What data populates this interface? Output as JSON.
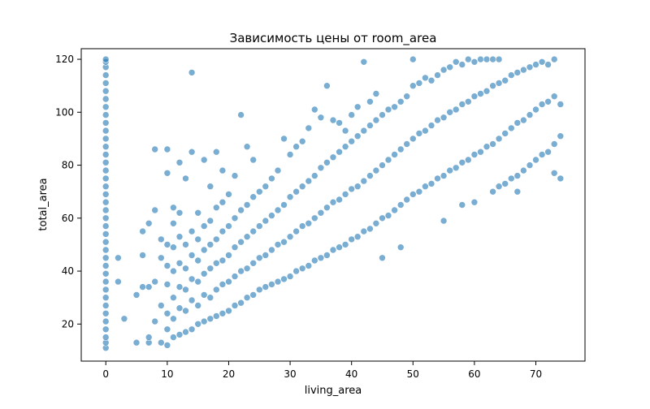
{
  "chart_data": {
    "type": "scatter",
    "title": "Зависимость цены от room_area",
    "xlabel": "living_area",
    "ylabel": "total_area",
    "xlim": [
      -4,
      78
    ],
    "ylim": [
      6,
      124
    ],
    "x_ticks": [
      0,
      10,
      20,
      30,
      40,
      50,
      60,
      70
    ],
    "y_ticks": [
      20,
      40,
      60,
      80,
      100,
      120
    ],
    "grid": false,
    "legend": "none",
    "point_color": "#1f77b4",
    "point_opacity": 0.6,
    "series": [
      {
        "points": [
          [
            0,
            11
          ],
          [
            0,
            13
          ],
          [
            0,
            15
          ],
          [
            0,
            18
          ],
          [
            0,
            21
          ],
          [
            0,
            24
          ],
          [
            0,
            27
          ],
          [
            0,
            30
          ],
          [
            0,
            33
          ],
          [
            0,
            36
          ],
          [
            0,
            39
          ],
          [
            0,
            42
          ],
          [
            0,
            45
          ],
          [
            0,
            48
          ],
          [
            0,
            51
          ],
          [
            0,
            54
          ],
          [
            0,
            57
          ],
          [
            0,
            60
          ],
          [
            0,
            63
          ],
          [
            0,
            66
          ],
          [
            0,
            69
          ],
          [
            0,
            72
          ],
          [
            0,
            75
          ],
          [
            0,
            78
          ],
          [
            0,
            81
          ],
          [
            0,
            84
          ],
          [
            0,
            87
          ],
          [
            0,
            90
          ],
          [
            0,
            93
          ],
          [
            0,
            96
          ],
          [
            0,
            99
          ],
          [
            0,
            102
          ],
          [
            0,
            105
          ],
          [
            0,
            108
          ],
          [
            0,
            111
          ],
          [
            0,
            114
          ],
          [
            0,
            117
          ],
          [
            0,
            119
          ],
          [
            0,
            120
          ],
          [
            2,
            45
          ],
          [
            2,
            36
          ],
          [
            3,
            22
          ],
          [
            5,
            13
          ],
          [
            5,
            31
          ],
          [
            6,
            34
          ],
          [
            6,
            46
          ],
          [
            6,
            55
          ],
          [
            7,
            13
          ],
          [
            7,
            15
          ],
          [
            7,
            34
          ],
          [
            7,
            58
          ],
          [
            8,
            21
          ],
          [
            8,
            36
          ],
          [
            8,
            63
          ],
          [
            8,
            86
          ],
          [
            9,
            13
          ],
          [
            9,
            27
          ],
          [
            9,
            45
          ],
          [
            9,
            52
          ],
          [
            10,
            12
          ],
          [
            10,
            18
          ],
          [
            10,
            24
          ],
          [
            10,
            35
          ],
          [
            10,
            42
          ],
          [
            10,
            50
          ],
          [
            10,
            77
          ],
          [
            10,
            86
          ],
          [
            11,
            15
          ],
          [
            11,
            22
          ],
          [
            11,
            30
          ],
          [
            11,
            40
          ],
          [
            11,
            49
          ],
          [
            11,
            58
          ],
          [
            11,
            64
          ],
          [
            12,
            16
          ],
          [
            12,
            26
          ],
          [
            12,
            34
          ],
          [
            12,
            43
          ],
          [
            12,
            53
          ],
          [
            12,
            62
          ],
          [
            12,
            81
          ],
          [
            13,
            17
          ],
          [
            13,
            25
          ],
          [
            13,
            33
          ],
          [
            13,
            41
          ],
          [
            13,
            50
          ],
          [
            13,
            75
          ],
          [
            14,
            18
          ],
          [
            14,
            29
          ],
          [
            14,
            37
          ],
          [
            14,
            46
          ],
          [
            14,
            55
          ],
          [
            14,
            85
          ],
          [
            14,
            115
          ],
          [
            15,
            20
          ],
          [
            15,
            27
          ],
          [
            15,
            36
          ],
          [
            15,
            44
          ],
          [
            15,
            52
          ],
          [
            15,
            62
          ],
          [
            16,
            21
          ],
          [
            16,
            31
          ],
          [
            16,
            39
          ],
          [
            16,
            48
          ],
          [
            16,
            57
          ],
          [
            16,
            82
          ],
          [
            17,
            22
          ],
          [
            17,
            30
          ],
          [
            17,
            41
          ],
          [
            17,
            50
          ],
          [
            17,
            59
          ],
          [
            17,
            72
          ],
          [
            18,
            23
          ],
          [
            18,
            33
          ],
          [
            18,
            43
          ],
          [
            18,
            52
          ],
          [
            18,
            64
          ],
          [
            18,
            85
          ],
          [
            19,
            24
          ],
          [
            19,
            35
          ],
          [
            19,
            44
          ],
          [
            19,
            55
          ],
          [
            19,
            66
          ],
          [
            19,
            78
          ],
          [
            20,
            25
          ],
          [
            20,
            36
          ],
          [
            20,
            46
          ],
          [
            20,
            57
          ],
          [
            20,
            69
          ],
          [
            21,
            27
          ],
          [
            21,
            38
          ],
          [
            21,
            49
          ],
          [
            21,
            60
          ],
          [
            21,
            76
          ],
          [
            22,
            28
          ],
          [
            22,
            40
          ],
          [
            22,
            51
          ],
          [
            22,
            63
          ],
          [
            22,
            99
          ],
          [
            23,
            30
          ],
          [
            23,
            41
          ],
          [
            23,
            53
          ],
          [
            23,
            65
          ],
          [
            23,
            87
          ],
          [
            24,
            31
          ],
          [
            24,
            43
          ],
          [
            24,
            55
          ],
          [
            24,
            68
          ],
          [
            24,
            82
          ],
          [
            25,
            33
          ],
          [
            25,
            45
          ],
          [
            25,
            57
          ],
          [
            25,
            70
          ],
          [
            26,
            34
          ],
          [
            26,
            46
          ],
          [
            26,
            59
          ],
          [
            26,
            72
          ],
          [
            27,
            35
          ],
          [
            27,
            48
          ],
          [
            27,
            61
          ],
          [
            27,
            75
          ],
          [
            28,
            36
          ],
          [
            28,
            50
          ],
          [
            28,
            63
          ],
          [
            28,
            78
          ],
          [
            29,
            37
          ],
          [
            29,
            51
          ],
          [
            29,
            65
          ],
          [
            29,
            90
          ],
          [
            30,
            38
          ],
          [
            30,
            53
          ],
          [
            30,
            68
          ],
          [
            30,
            84
          ],
          [
            31,
            40
          ],
          [
            31,
            55
          ],
          [
            31,
            70
          ],
          [
            31,
            87
          ],
          [
            32,
            41
          ],
          [
            32,
            57
          ],
          [
            32,
            72
          ],
          [
            32,
            89
          ],
          [
            33,
            42
          ],
          [
            33,
            58
          ],
          [
            33,
            74
          ],
          [
            33,
            94
          ],
          [
            34,
            44
          ],
          [
            34,
            60
          ],
          [
            34,
            76
          ],
          [
            34,
            101
          ],
          [
            35,
            45
          ],
          [
            35,
            62
          ],
          [
            35,
            79
          ],
          [
            35,
            98
          ],
          [
            36,
            46
          ],
          [
            36,
            64
          ],
          [
            36,
            81
          ],
          [
            36,
            110
          ],
          [
            37,
            48
          ],
          [
            37,
            66
          ],
          [
            37,
            83
          ],
          [
            37,
            97
          ],
          [
            38,
            49
          ],
          [
            38,
            67
          ],
          [
            38,
            85
          ],
          [
            38,
            96
          ],
          [
            39,
            50
          ],
          [
            39,
            69
          ],
          [
            39,
            87
          ],
          [
            39,
            93
          ],
          [
            40,
            52
          ],
          [
            40,
            71
          ],
          [
            40,
            89
          ],
          [
            40,
            99
          ],
          [
            41,
            53
          ],
          [
            41,
            72
          ],
          [
            41,
            91
          ],
          [
            41,
            102
          ],
          [
            42,
            55
          ],
          [
            42,
            74
          ],
          [
            42,
            93
          ],
          [
            42,
            119
          ],
          [
            43,
            56
          ],
          [
            43,
            76
          ],
          [
            43,
            95
          ],
          [
            43,
            104
          ],
          [
            44,
            58
          ],
          [
            44,
            78
          ],
          [
            44,
            97
          ],
          [
            44,
            107
          ],
          [
            45,
            45
          ],
          [
            45,
            60
          ],
          [
            45,
            80
          ],
          [
            45,
            99
          ],
          [
            46,
            61
          ],
          [
            46,
            82
          ],
          [
            46,
            101
          ],
          [
            47,
            63
          ],
          [
            47,
            84
          ],
          [
            47,
            102
          ],
          [
            48,
            49
          ],
          [
            48,
            65
          ],
          [
            48,
            86
          ],
          [
            48,
            104
          ],
          [
            49,
            67
          ],
          [
            49,
            88
          ],
          [
            49,
            106
          ],
          [
            50,
            69
          ],
          [
            50,
            90
          ],
          [
            50,
            110
          ],
          [
            50,
            120
          ],
          [
            51,
            70
          ],
          [
            51,
            92
          ],
          [
            51,
            111
          ],
          [
            52,
            72
          ],
          [
            52,
            93
          ],
          [
            52,
            113
          ],
          [
            53,
            73
          ],
          [
            53,
            95
          ],
          [
            53,
            112
          ],
          [
            54,
            75
          ],
          [
            54,
            97
          ],
          [
            54,
            114
          ],
          [
            55,
            59
          ],
          [
            55,
            76
          ],
          [
            55,
            98
          ],
          [
            55,
            116
          ],
          [
            56,
            78
          ],
          [
            56,
            100
          ],
          [
            56,
            117
          ],
          [
            57,
            79
          ],
          [
            57,
            101
          ],
          [
            57,
            119
          ],
          [
            58,
            65
          ],
          [
            58,
            81
          ],
          [
            58,
            103
          ],
          [
            58,
            118
          ],
          [
            59,
            82
          ],
          [
            59,
            104
          ],
          [
            59,
            120
          ],
          [
            60,
            66
          ],
          [
            60,
            84
          ],
          [
            60,
            106
          ],
          [
            60,
            119
          ],
          [
            61,
            85
          ],
          [
            61,
            107
          ],
          [
            61,
            120
          ],
          [
            62,
            87
          ],
          [
            62,
            108
          ],
          [
            62,
            120
          ],
          [
            63,
            70
          ],
          [
            63,
            88
          ],
          [
            63,
            110
          ],
          [
            63,
            120
          ],
          [
            64,
            72
          ],
          [
            64,
            90
          ],
          [
            64,
            111
          ],
          [
            64,
            120
          ],
          [
            65,
            73
          ],
          [
            65,
            92
          ],
          [
            65,
            112
          ],
          [
            66,
            75
          ],
          [
            66,
            94
          ],
          [
            66,
            114
          ],
          [
            67,
            76
          ],
          [
            67,
            96
          ],
          [
            67,
            115
          ],
          [
            67,
            70
          ],
          [
            68,
            78
          ],
          [
            68,
            97
          ],
          [
            68,
            116
          ],
          [
            69,
            80
          ],
          [
            69,
            99
          ],
          [
            69,
            117
          ],
          [
            70,
            82
          ],
          [
            70,
            101
          ],
          [
            70,
            118
          ],
          [
            71,
            84
          ],
          [
            71,
            103
          ],
          [
            71,
            119
          ],
          [
            72,
            85
          ],
          [
            72,
            104
          ],
          [
            72,
            118
          ],
          [
            73,
            77
          ],
          [
            73,
            88
          ],
          [
            73,
            106
          ],
          [
            73,
            120
          ],
          [
            74,
            75
          ],
          [
            74,
            91
          ],
          [
            74,
            103
          ]
        ]
      }
    ]
  }
}
